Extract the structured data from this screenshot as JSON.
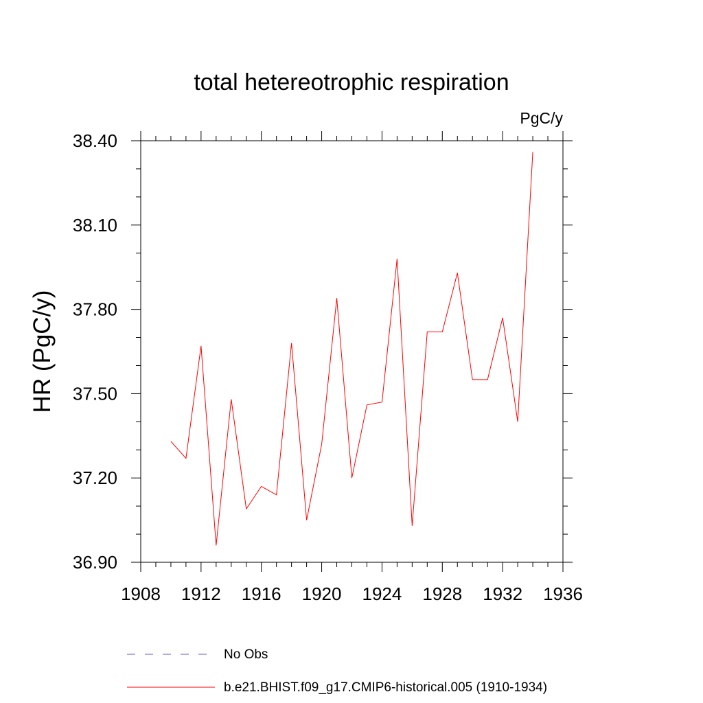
{
  "chart_data": {
    "type": "line",
    "title": "total hetereotrophic respiration",
    "units_label": "PgC/y",
    "ylabel": "HR  (PgC/y)",
    "xlabel": "",
    "xlim": [
      1908,
      1936
    ],
    "ylim": [
      36.9,
      38.4
    ],
    "x_ticks": [
      1908,
      1912,
      1916,
      1920,
      1924,
      1928,
      1932,
      1936
    ],
    "x_tick_labels": [
      "1908",
      "1912",
      "1916",
      "1920",
      "1924",
      "1928",
      "1932",
      "1936"
    ],
    "y_ticks": [
      36.9,
      37.2,
      37.5,
      37.8,
      38.1,
      38.4
    ],
    "y_tick_labels": [
      "36.90",
      "37.20",
      "37.50",
      "37.80",
      "38.10",
      "38.40"
    ],
    "grid": false,
    "legend_position": "bottom",
    "series": [
      {
        "name": "b.e21.BHIST.f09_g17.CMIP6-historical.005 (1910-1934)",
        "color": "#ff0000",
        "style": "solid",
        "x": [
          1910,
          1911,
          1912,
          1913,
          1914,
          1915,
          1916,
          1917,
          1918,
          1919,
          1920,
          1921,
          1922,
          1923,
          1924,
          1925,
          1926,
          1927,
          1928,
          1929,
          1930,
          1931,
          1932,
          1933,
          1934
        ],
        "y": [
          37.33,
          37.27,
          37.67,
          36.96,
          37.48,
          37.09,
          37.17,
          37.14,
          37.68,
          37.05,
          37.32,
          37.84,
          37.2,
          37.46,
          37.47,
          37.98,
          37.03,
          37.72,
          37.72,
          37.93,
          37.55,
          37.55,
          37.77,
          37.4,
          38.36
        ]
      },
      {
        "name": "No Obs",
        "color": "#6a5acd",
        "style": "dashed",
        "x": [],
        "y": []
      }
    ]
  }
}
